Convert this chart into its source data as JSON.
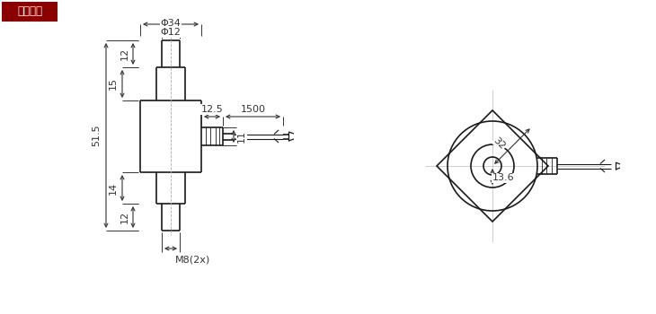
{
  "bg_color": "#ffffff",
  "line_color": "#1a1a1a",
  "dim_color": "#333333",
  "label_box_bg": "#8B0000",
  "label_box_text": "#ffffff",
  "label_box_text_cn": "外形尺寸",
  "annotations": {
    "phi34": "Φ34",
    "phi12": "Φ12",
    "dim_15": "15",
    "dim_12_top": "12",
    "dim_12_bot": "12",
    "dim_14": "14",
    "dim_51_5": "51.5",
    "dim_12_5": "12.5",
    "dim_1500": "1500",
    "dim_11": "11",
    "dim_m8": "M8(2x)",
    "dim_32": "32",
    "dim_13_6": "13.6"
  }
}
